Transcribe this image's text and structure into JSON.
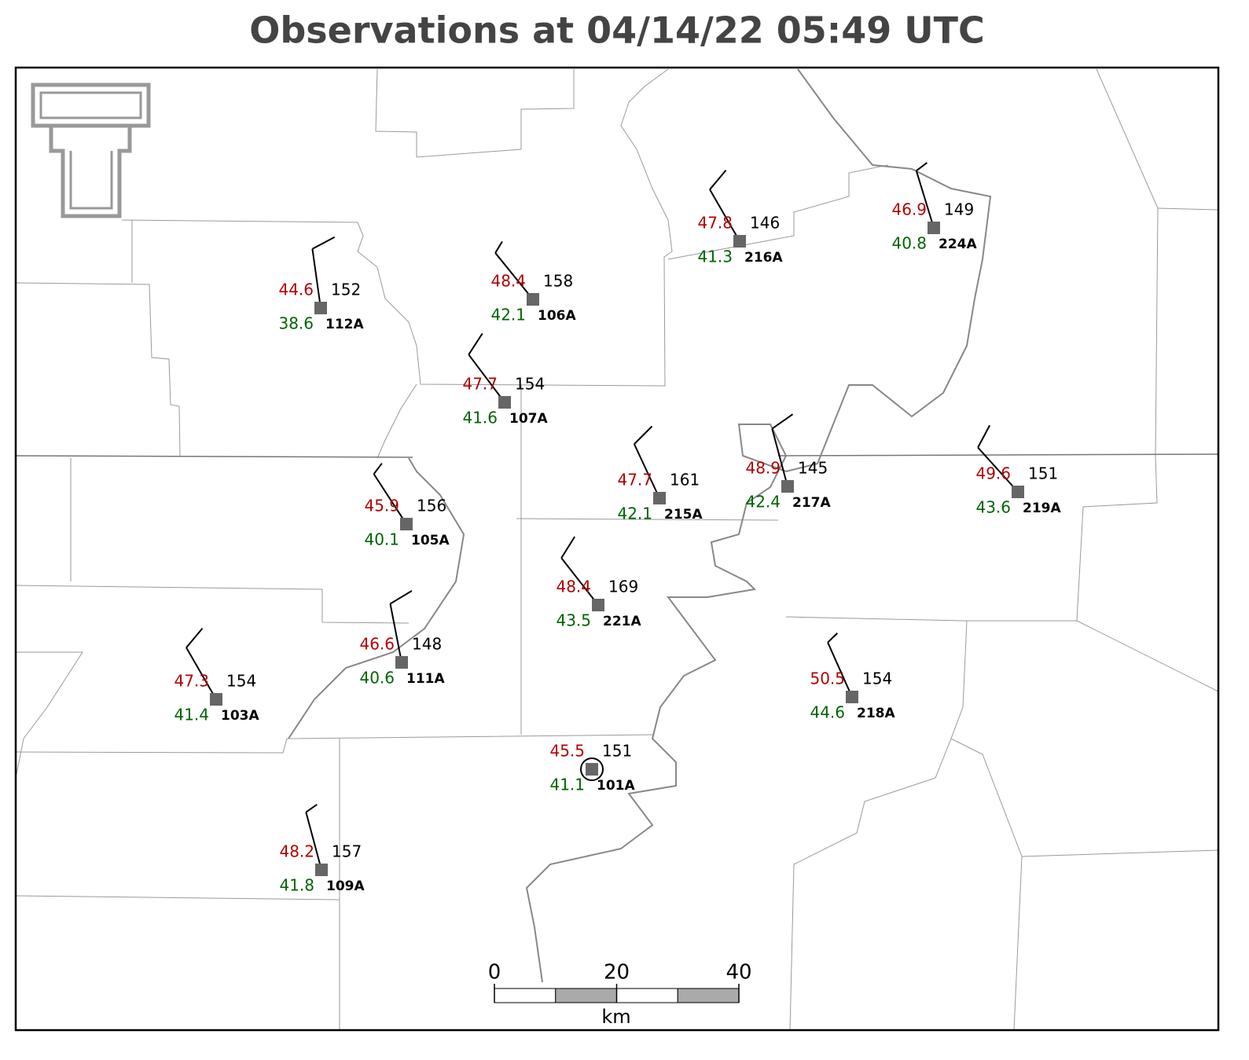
{
  "title": "Observations at 04/14/22 05:49 UTC",
  "stations": [
    {
      "id": "112A",
      "temperature": 44.6,
      "dewpoint": 38.6,
      "pressure": 152,
      "wind_direction": 352,
      "wind_speed": 10
    },
    {
      "id": "106A",
      "temperature": 48.4,
      "dewpoint": 42.1,
      "pressure": 158,
      "wind_direction": 321,
      "wind_speed": 5
    },
    {
      "id": "107A",
      "temperature": 47.7,
      "dewpoint": 41.6,
      "pressure": 154,
      "wind_direction": 323,
      "wind_speed": 10
    },
    {
      "id": "216A",
      "temperature": 47.8,
      "dewpoint": 41.3,
      "pressure": 146,
      "wind_direction": 330,
      "wind_speed": 10
    },
    {
      "id": "224A",
      "temperature": 46.9,
      "dewpoint": 40.8,
      "pressure": 149,
      "wind_direction": 343,
      "wind_speed": 5
    },
    {
      "id": "215A",
      "temperature": 47.7,
      "dewpoint": 42.1,
      "pressure": 161,
      "wind_direction": 335,
      "wind_speed": 10
    },
    {
      "id": "217A",
      "temperature": 48.9,
      "dewpoint": 42.4,
      "pressure": 145,
      "wind_direction": 345,
      "wind_speed": 10
    },
    {
      "id": "219A",
      "temperature": 49.6,
      "dewpoint": 43.6,
      "pressure": 151,
      "wind_direction": 318,
      "wind_speed": 10
    },
    {
      "id": "105A",
      "temperature": 45.9,
      "dewpoint": 40.1,
      "pressure": 156,
      "wind_direction": 327,
      "wind_speed": 5
    },
    {
      "id": "221A",
      "temperature": 48.4,
      "dewpoint": 43.5,
      "pressure": 169,
      "wind_direction": 322,
      "wind_speed": 10
    },
    {
      "id": "111A",
      "temperature": 46.6,
      "dewpoint": 40.6,
      "pressure": 148,
      "wind_direction": 349,
      "wind_speed": 10
    },
    {
      "id": "103A",
      "temperature": 47.3,
      "dewpoint": 41.4,
      "pressure": 154,
      "wind_direction": 330,
      "wind_speed": 10
    },
    {
      "id": "218A",
      "temperature": 50.5,
      "dewpoint": 44.6,
      "pressure": 154,
      "wind_direction": 336,
      "wind_speed": 5
    },
    {
      "id": "101A",
      "temperature": 45.5,
      "dewpoint": 41.1,
      "pressure": 151,
      "wind_direction": 0,
      "wind_speed": 0
    },
    {
      "id": "109A",
      "temperature": 48.2,
      "dewpoint": 41.8,
      "pressure": 157,
      "wind_direction": 345,
      "wind_speed": 5
    }
  ],
  "scale_bar": {
    "ticks": [
      0,
      20,
      40
    ],
    "lim": [
      0,
      40
    ],
    "unit": "km"
  }
}
